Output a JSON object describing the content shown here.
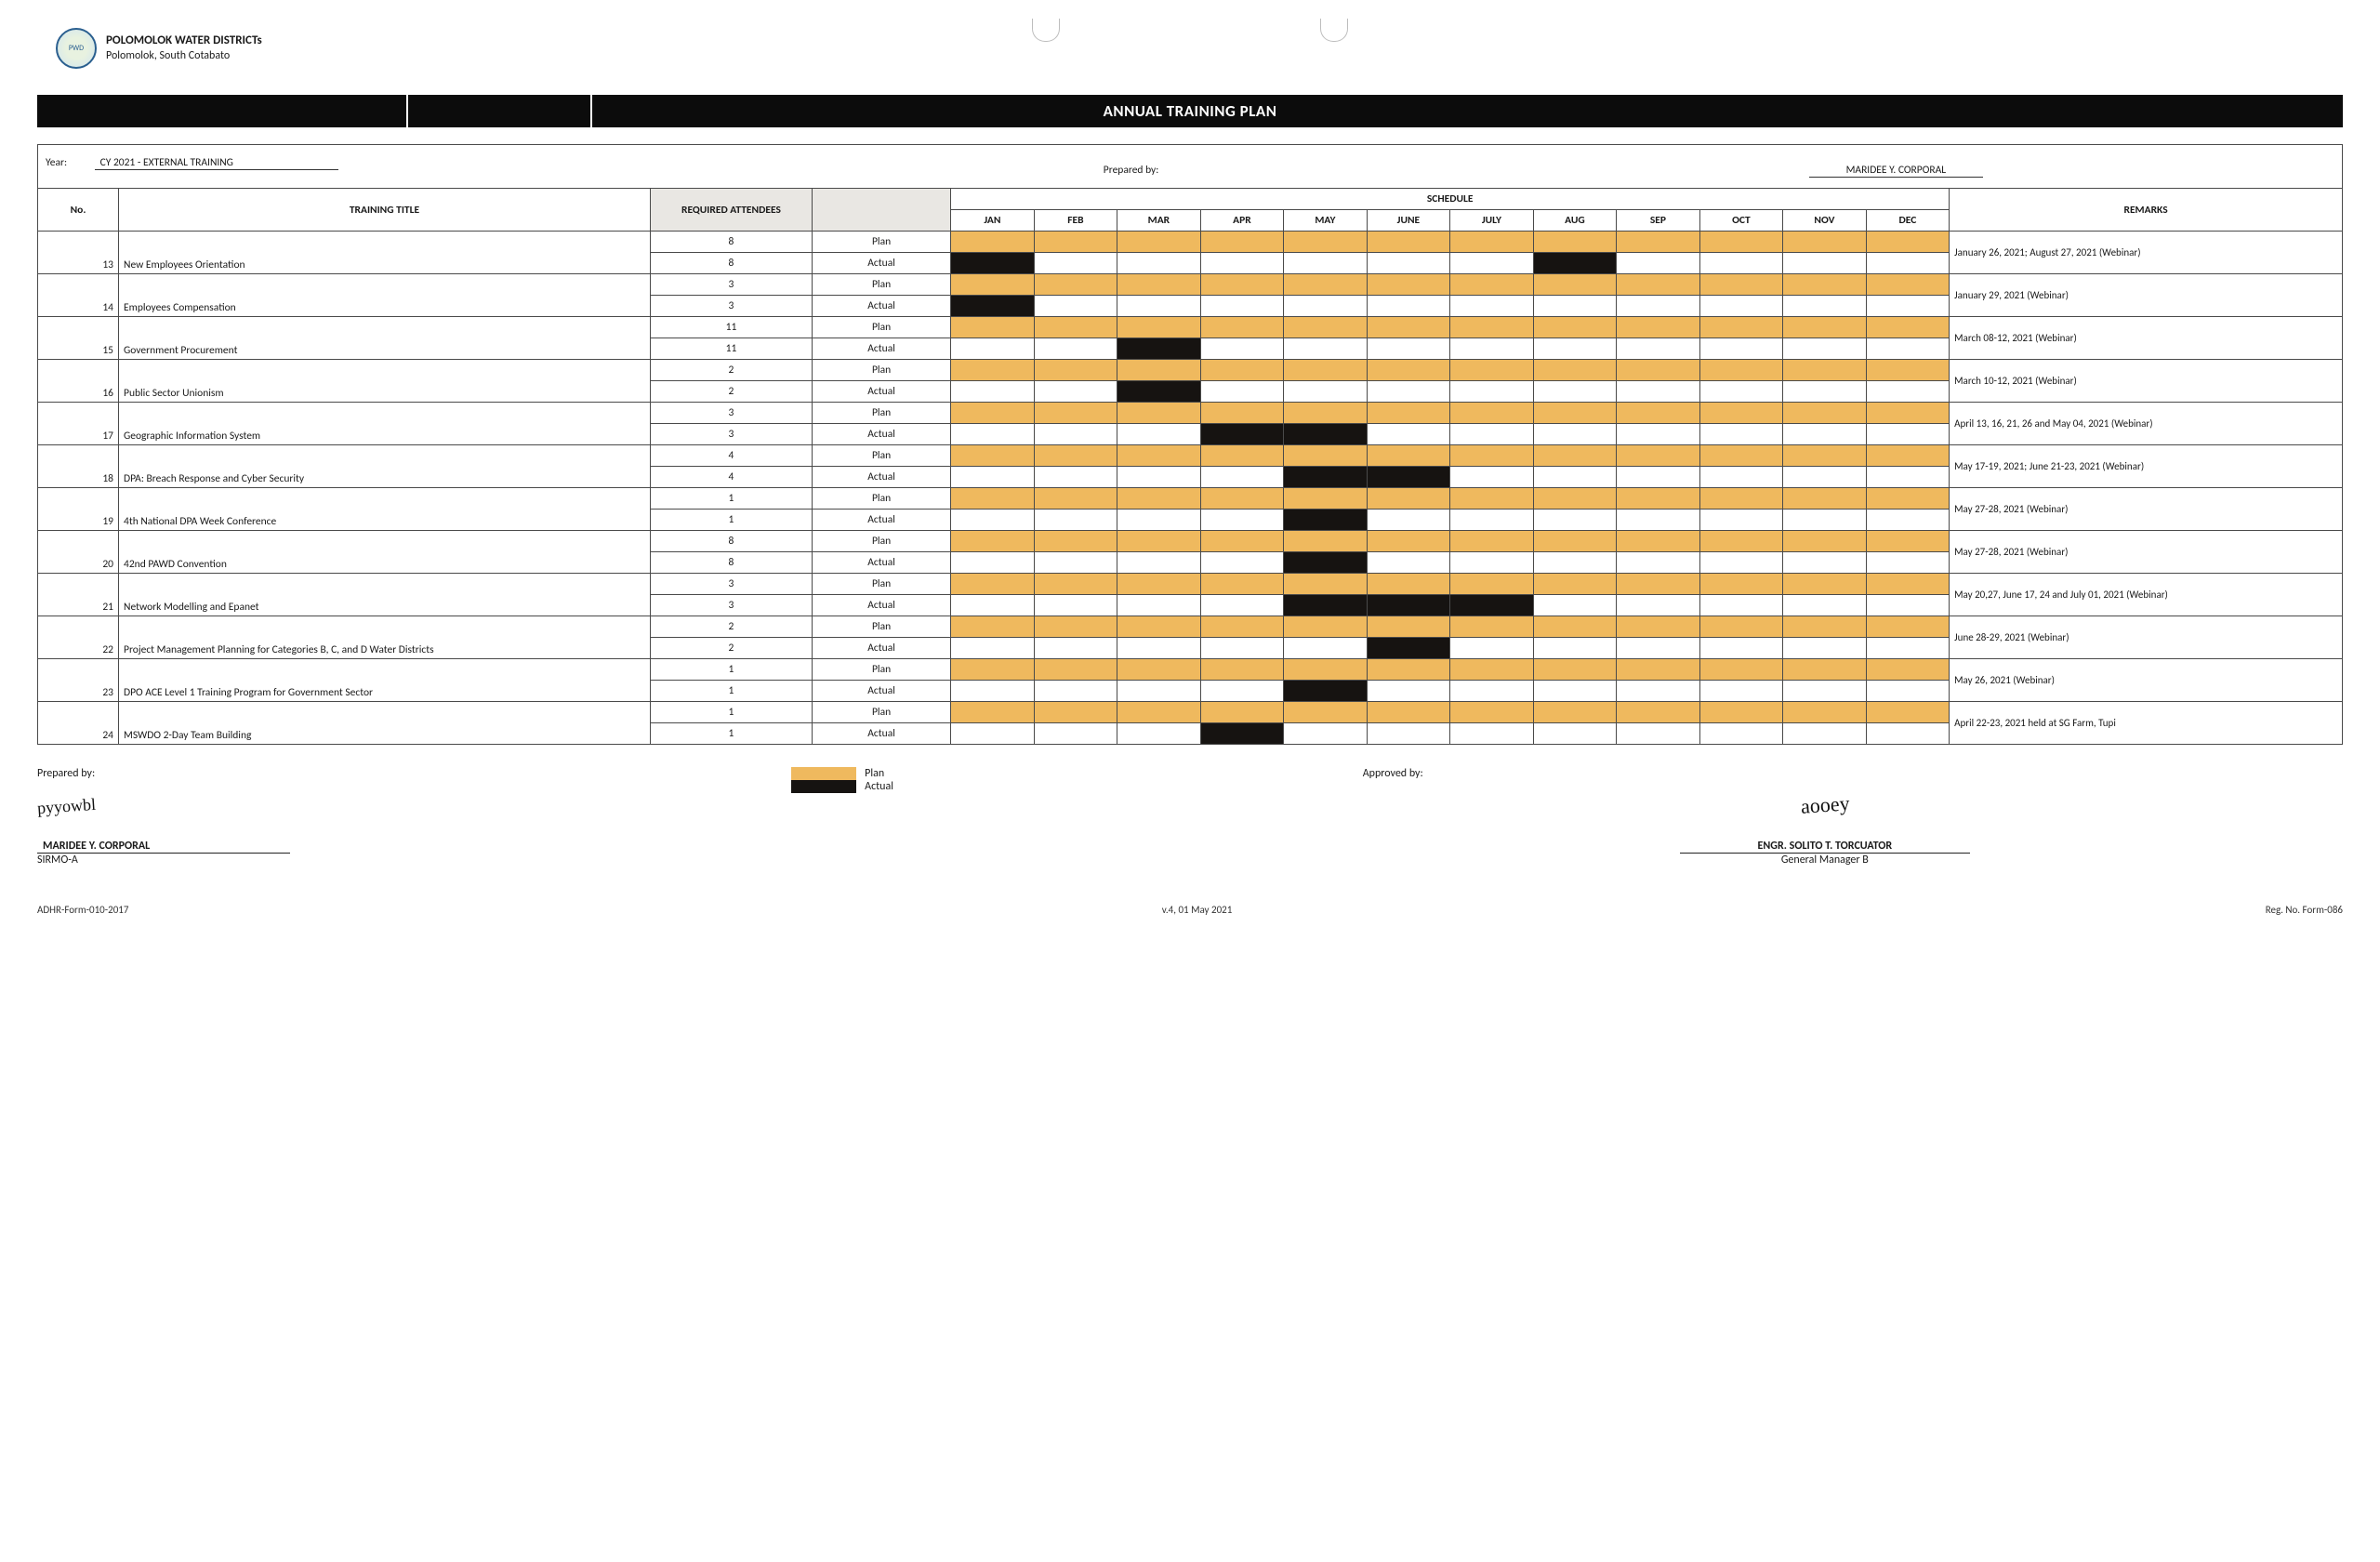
{
  "colors": {
    "plan_fill": "#efb95e",
    "actual_fill": "#161311",
    "header_gray": "#e9e7e3",
    "banner_bg": "#0c0c0c",
    "border": "#4a4a4a"
  },
  "org": {
    "name": "POLOMOLOK WATER DISTRICTs",
    "location": "Polomolok, South Cotabato"
  },
  "banner_title": "ANNUAL TRAINING PLAN",
  "meta": {
    "year_label": "Year:",
    "year_value": "CY 2021 - EXTERNAL TRAINING",
    "prepared_by_label": "Prepared by:",
    "prepared_by_name": "MARIDEE Y. CORPORAL"
  },
  "columns": {
    "no": "No.",
    "title": "TRAINING TITLE",
    "required": "REQUIRED ATTENDEES",
    "schedule": "SCHEDULE",
    "remarks": "REMARKS",
    "months": [
      "JAN",
      "FEB",
      "MAR",
      "APR",
      "MAY",
      "JUNE",
      "JULY",
      "AUG",
      "SEP",
      "OCT",
      "NOV",
      "DEC"
    ],
    "plan_label": "Plan",
    "actual_label": "Actual"
  },
  "rows": [
    {
      "no": 13,
      "title": "New Employees Orientation",
      "req_plan": 8,
      "req_actual": 8,
      "actual_months": [
        1,
        8
      ],
      "remarks": "January 26, 2021; August 27, 2021 (Webinar)"
    },
    {
      "no": 14,
      "title": "Employees Compensation",
      "req_plan": 3,
      "req_actual": 3,
      "actual_months": [
        1
      ],
      "remarks": "January 29, 2021 (Webinar)"
    },
    {
      "no": 15,
      "title": "Government Procurement",
      "req_plan": 11,
      "req_actual": 11,
      "actual_months": [
        3
      ],
      "remarks": "March 08-12, 2021 (Webinar)"
    },
    {
      "no": 16,
      "title": "Public Sector Unionism",
      "req_plan": 2,
      "req_actual": 2,
      "actual_months": [
        3
      ],
      "remarks": "March 10-12, 2021 (Webinar)"
    },
    {
      "no": 17,
      "title": "Geographic Information System",
      "req_plan": 3,
      "req_actual": 3,
      "actual_months": [
        4,
        5
      ],
      "remarks": "April 13, 16, 21, 26 and May 04, 2021 (Webinar)"
    },
    {
      "no": 18,
      "title": "DPA: Breach Response and Cyber Security",
      "req_plan": 4,
      "req_actual": 4,
      "actual_months": [
        5,
        6
      ],
      "remarks": "May 17-19, 2021; June 21-23, 2021 (Webinar)"
    },
    {
      "no": 19,
      "title": "4th National DPA Week Conference",
      "req_plan": 1,
      "req_actual": 1,
      "actual_months": [
        5
      ],
      "remarks": "May 27-28, 2021 (Webinar)"
    },
    {
      "no": 20,
      "title": "42nd PAWD Convention",
      "req_plan": 8,
      "req_actual": 8,
      "actual_months": [
        5
      ],
      "remarks": "May 27-28, 2021 (Webinar)"
    },
    {
      "no": 21,
      "title": "Network Modelling and Epanet",
      "req_plan": 3,
      "req_actual": 3,
      "actual_months": [
        5,
        6,
        7
      ],
      "remarks": "May 20,27, June 17, 24 and July 01, 2021 (Webinar)"
    },
    {
      "no": 22,
      "title": "Project Management Planning for Categories B, C, and D Water Districts",
      "req_plan": 2,
      "req_actual": 2,
      "actual_months": [
        6
      ],
      "remarks": "June 28-29, 2021 (Webinar)"
    },
    {
      "no": 23,
      "title": "DPO ACE Level 1 Training Program for Government Sector",
      "req_plan": 1,
      "req_actual": 1,
      "actual_months": [
        5
      ],
      "remarks": "May 26, 2021 (Webinar)"
    },
    {
      "no": 24,
      "title": "MSWDO 2-Day Team Building",
      "req_plan": 1,
      "req_actual": 1,
      "actual_months": [
        4
      ],
      "remarks": "April 22-23, 2021 held at SG Farm, Tupi"
    }
  ],
  "legend": {
    "plan": "Plan",
    "actual": "Actual"
  },
  "signatures": {
    "left_label": "Prepared by:",
    "left_name": "MARIDEE Y. CORPORAL",
    "left_title": "SIRMO-A",
    "right_label": "Approved by:",
    "right_name": "ENGR. SOLITO T. TORCUATOR",
    "right_title": "General Manager B"
  },
  "footer": {
    "left": "ADHR-Form-010-2017",
    "center": "v.4, 01 May 2021",
    "right": "Reg. No. Form-086"
  }
}
